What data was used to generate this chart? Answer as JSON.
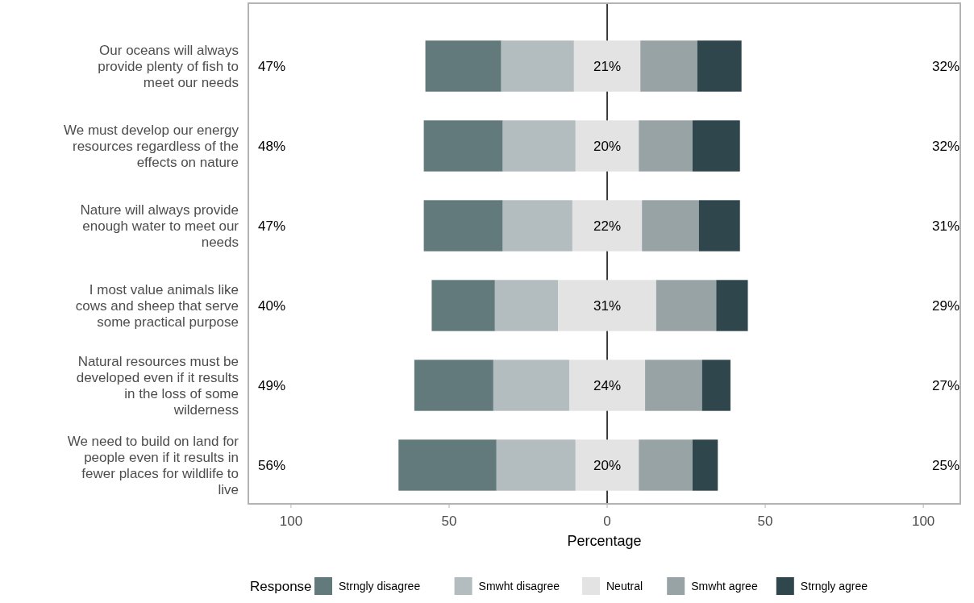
{
  "chart_data": {
    "type": "bar",
    "orientation": "horizontal",
    "xlabel": "Percentage",
    "legend_title": "Response",
    "legend": "bottom",
    "grid": false,
    "categories": [
      "Our oceans will always provide plenty of fish to meet our needs",
      "We must develop our energy resources regardless of the effects on nature",
      "Nature will always provide enough water to meet our needs",
      "I most value animals like cows and sheep that serve some practical purpose",
      "Natural resources must be developed even if it results in the loss of some wilderness",
      "We need to build on land for people even if it results in fewer places for wildlife to live"
    ],
    "xlim": [
      -113.5,
      111.7
    ],
    "xticks": [
      {
        "value": -100,
        "label": "100"
      },
      {
        "value": -50,
        "label": "50"
      },
      0,
      50,
      100
    ],
    "ref_lines": [
      {
        "axis": "x",
        "value": 0,
        "color": "#000000"
      }
    ],
    "series": [
      {
        "name": "Strngly disagree",
        "color": "#637a7c",
        "values": [
          24,
          25,
          25,
          20,
          25,
          31
        ],
        "base": [
          -57.5,
          -58,
          -58,
          -55.5,
          -61,
          -66
        ]
      },
      {
        "name": "Smwht disagree",
        "color": "#b3bcbe",
        "values": [
          23,
          23,
          22,
          20,
          24,
          25
        ],
        "base": [
          -33.5,
          -33,
          -33,
          -35.5,
          -36,
          -35
        ]
      },
      {
        "name": "Neutral",
        "color": "#e3e3e3",
        "values": [
          21,
          20,
          22,
          31,
          24,
          20
        ],
        "base": [
          -10.5,
          -10,
          -11,
          -15.5,
          -12,
          -10
        ],
        "value_labels": [
          "21%",
          "20%",
          "22%",
          "31%",
          "24%",
          "20%"
        ]
      },
      {
        "name": "Smwht agree",
        "color": "#98a3a6",
        "values": [
          18,
          17,
          18,
          19,
          18,
          17
        ],
        "base": [
          10.5,
          10,
          11,
          15.5,
          12,
          10
        ]
      },
      {
        "name": "Strngly agree",
        "color": "#2f464d",
        "values": [
          14,
          15,
          13,
          10,
          9,
          8
        ],
        "base": [
          28.5,
          27,
          29,
          34.5,
          30,
          27
        ]
      }
    ],
    "annotations": [
      "47%",
      "32%",
      "48%",
      "32%",
      "47%",
      "31%",
      "40%",
      "29%",
      "49%",
      "27%",
      "56%",
      "25%"
    ]
  }
}
